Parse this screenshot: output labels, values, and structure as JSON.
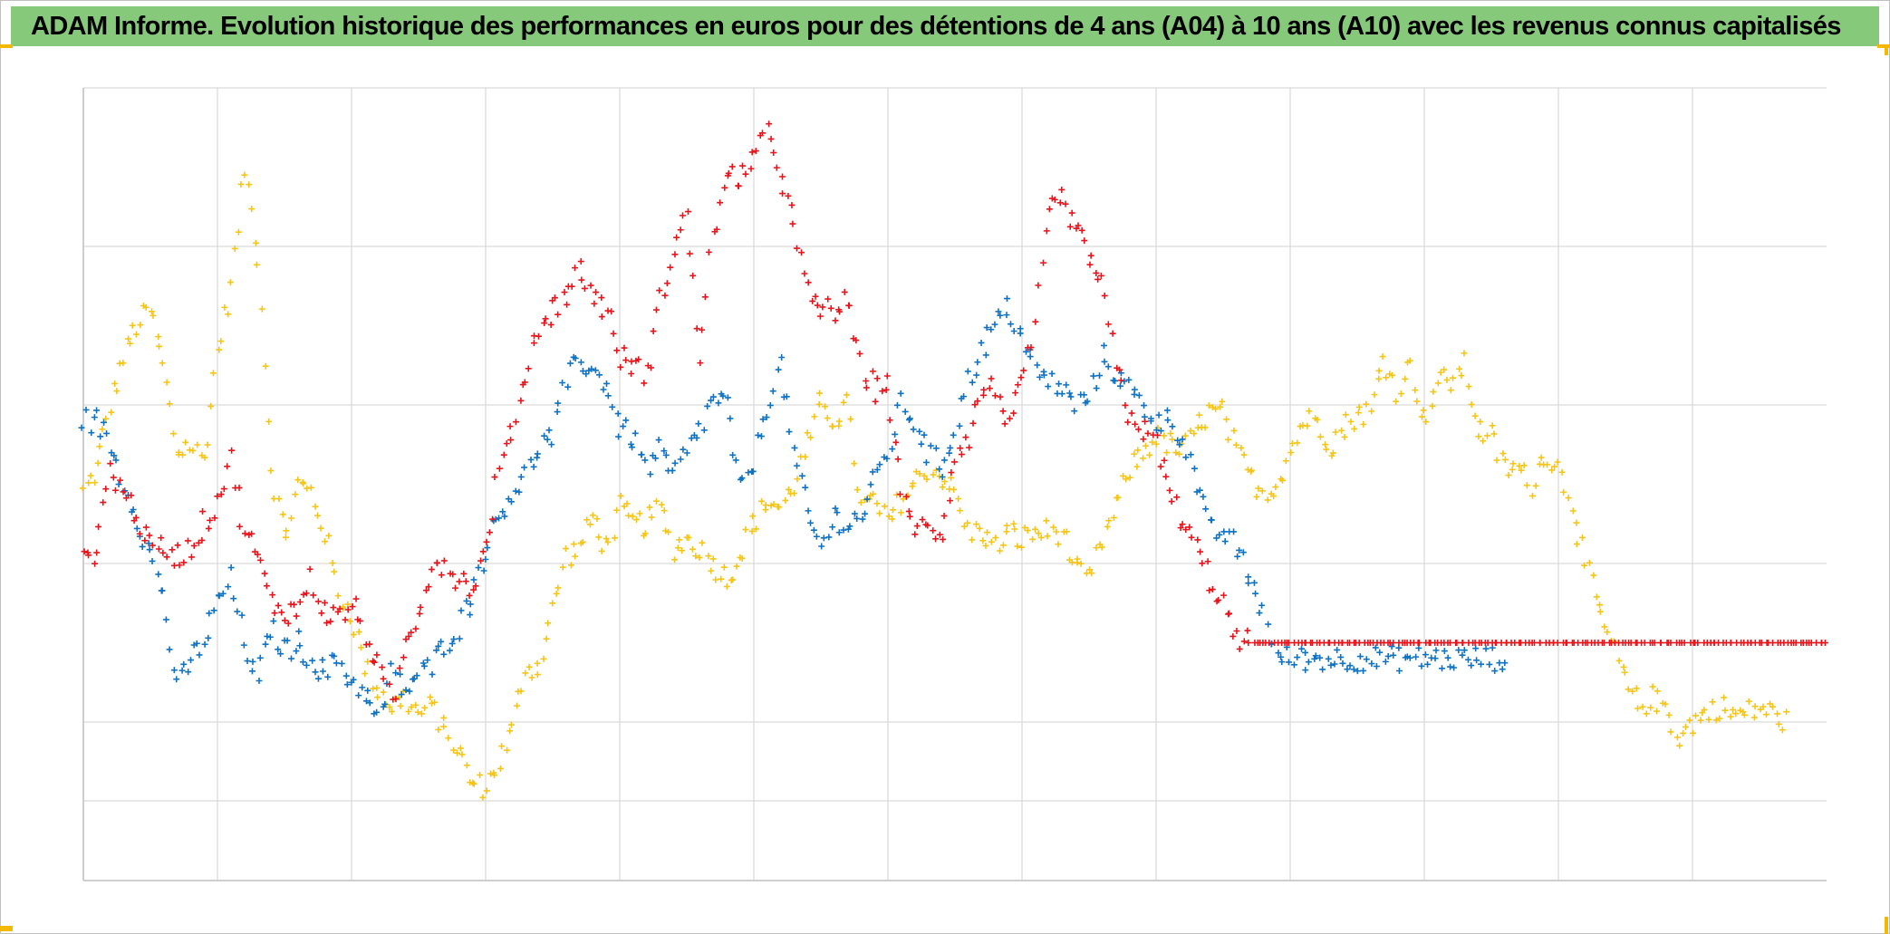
{
  "title": "ADAM Informe. Evolution historique des performances en euros pour des détentions de 4 ans (A04) à 10 ans (A10) avec les revenus connus capitalisés",
  "colors": {
    "title_bg": "#86c97a",
    "corner_accent": "#f5b800",
    "grid": "#d9d9d9"
  },
  "chart_data": {
    "type": "scatter",
    "marker": "plus",
    "x_ticks": 13,
    "y_ticks": 6,
    "xlim": [
      0,
      1300
    ],
    "ylim": [
      -150,
      350
    ],
    "grid": true,
    "legend": "none",
    "series": [
      {
        "color": "#f5c518",
        "x": [
          0,
          10,
          20,
          30,
          40,
          50,
          60,
          70,
          80,
          90,
          100,
          110,
          120,
          130,
          140,
          150,
          160,
          170,
          180,
          190,
          200,
          210,
          220,
          230,
          240,
          250,
          260,
          270,
          280,
          290,
          300,
          310,
          320,
          330,
          340,
          350,
          360,
          370,
          380,
          390,
          400,
          410,
          420,
          430,
          440,
          450,
          460,
          470,
          480,
          490,
          500,
          510,
          520,
          530,
          540,
          550,
          560,
          570,
          580,
          590,
          600,
          610,
          620,
          630,
          640,
          650,
          660,
          670,
          680,
          690,
          700,
          710,
          720,
          730,
          740,
          750,
          760,
          770,
          780,
          790,
          800,
          810,
          820,
          830,
          840,
          850,
          860,
          870,
          880,
          890,
          900,
          910,
          920,
          930,
          940,
          950,
          960,
          970,
          980,
          990,
          1000,
          1010,
          1020,
          1030,
          1040,
          1050,
          1060,
          1070,
          1080,
          1090,
          1100,
          1110,
          1120,
          1130,
          1140,
          1150,
          1160,
          1170,
          1180,
          1190,
          1200,
          1210,
          1220,
          1230,
          1240,
          1250,
          1260,
          1270
        ],
        "y": [
          95,
          110,
          150,
          180,
          200,
          210,
          175,
          120,
          125,
          115,
          185,
          225,
          300,
          245,
          110,
          65,
          100,
          95,
          70,
          30,
          20,
          -15,
          -30,
          -40,
          -35,
          -45,
          -40,
          -55,
          -70,
          -90,
          -90,
          -75,
          -55,
          -15,
          -15,
          20,
          55,
          60,
          80,
          60,
          85,
          75,
          75,
          85,
          60,
          65,
          60,
          50,
          40,
          55,
          75,
          90,
          85,
          100,
          125,
          150,
          140,
          150,
          85,
          90,
          75,
          90,
          100,
          110,
          105,
          95,
          70,
          70,
          60,
          70,
          65,
          70,
          70,
          70,
          45,
          40,
          65,
          85,
          110,
          120,
          130,
          125,
          120,
          135,
          145,
          145,
          120,
          105,
          95,
          100,
          120,
          140,
          140,
          125,
          135,
          145,
          145,
          180,
          160,
          175,
          140,
          165,
          165,
          175,
          135,
          130,
          110,
          110,
          100,
          120,
          110,
          90,
          50,
          20,
          0,
          -25,
          -40,
          -35,
          -40,
          -60,
          -50,
          -45,
          -40,
          -45,
          -45,
          -40,
          -45,
          -50
        ]
      },
      {
        "color": "#0f72c2",
        "x": [
          0,
          10,
          20,
          30,
          40,
          50,
          60,
          70,
          80,
          90,
          100,
          110,
          120,
          130,
          140,
          150,
          160,
          170,
          180,
          190,
          200,
          210,
          220,
          230,
          240,
          250,
          260,
          270,
          280,
          290,
          300,
          310,
          320,
          330,
          340,
          350,
          360,
          370,
          380,
          390,
          400,
          410,
          420,
          430,
          440,
          450,
          460,
          470,
          480,
          490,
          500,
          510,
          520,
          530,
          540,
          550,
          560,
          570,
          580,
          590,
          600,
          610,
          620,
          630,
          640,
          650,
          660,
          670,
          680,
          690,
          700,
          710,
          720,
          730,
          740,
          750,
          760,
          770,
          780,
          790,
          800,
          810,
          820,
          830,
          840,
          850,
          860,
          870,
          880,
          890,
          900,
          910,
          920,
          930,
          940,
          950,
          960,
          970,
          980,
          990,
          1000,
          1010,
          1020,
          1030,
          1040,
          1050,
          1060
        ],
        "y": [
          140,
          140,
          125,
          100,
          80,
          55,
          30,
          -30,
          -10,
          0,
          25,
          40,
          0,
          -25,
          10,
          -5,
          0,
          -10,
          -20,
          -10,
          -25,
          -30,
          -50,
          -20,
          -30,
          -20,
          -15,
          0,
          10,
          30,
          60,
          80,
          95,
          105,
          125,
          130,
          165,
          180,
          170,
          165,
          135,
          130,
          110,
          120,
          105,
          120,
          135,
          155,
          150,
          95,
          115,
          150,
          175,
          120,
          80,
          60,
          80,
          75,
          80,
          100,
          120,
          150,
          140,
          120,
          110,
          135,
          165,
          185,
          200,
          210,
          195,
          170,
          165,
          160,
          150,
          155,
          180,
          170,
          160,
          150,
          140,
          140,
          130,
          100,
          70,
          70,
          60,
          40,
          20,
          -10,
          -10,
          -10,
          -10,
          -10,
          -10,
          -10,
          -10,
          -10,
          -10,
          -10,
          -10,
          -10,
          -10,
          -10,
          -10,
          -10,
          -10
        ]
      },
      {
        "color": "#e8141b",
        "x": [
          0,
          10,
          20,
          30,
          40,
          50,
          60,
          70,
          80,
          90,
          100,
          110,
          120,
          130,
          140,
          150,
          160,
          170,
          180,
          190,
          200,
          210,
          220,
          230,
          240,
          250,
          260,
          270,
          280,
          290,
          300,
          310,
          320,
          330,
          340,
          350,
          360,
          370,
          380,
          390,
          400,
          410,
          420,
          430,
          440,
          450,
          460,
          470,
          480,
          490,
          500,
          510,
          520,
          530,
          540,
          550,
          560,
          570,
          580,
          590,
          600,
          610,
          620,
          630,
          640,
          650,
          660,
          670,
          680,
          690,
          700,
          710,
          720,
          730,
          740,
          750,
          760,
          770,
          780,
          790,
          800,
          810,
          820,
          830,
          840,
          850,
          860,
          870,
          880,
          890,
          900,
          910,
          920,
          930,
          940,
          950,
          960,
          970,
          980,
          990,
          1000,
          1010,
          1020,
          1030,
          1040,
          1050,
          1060,
          1070,
          1080,
          1090,
          1100,
          1110,
          1120,
          1130,
          1140,
          1150,
          1160,
          1170,
          1180,
          1190,
          1200,
          1210,
          1220,
          1230,
          1240,
          1250,
          1260,
          1270,
          1280,
          1290,
          1300
        ],
        "y": [
          50,
          60,
          110,
          95,
          80,
          60,
          60,
          55,
          60,
          75,
          90,
          115,
          70,
          55,
          25,
          20,
          20,
          40,
          20,
          15,
          25,
          5,
          -15,
          -40,
          0,
          20,
          50,
          50,
          40,
          35,
          60,
          110,
          135,
          170,
          200,
          210,
          220,
          235,
          220,
          210,
          180,
          175,
          170,
          215,
          250,
          270,
          180,
          260,
          290,
          295,
          305,
          320,
          300,
          260,
          220,
          210,
          210,
          215,
          175,
          160,
          165,
          90,
          75,
          70,
          70,
          120,
          130,
          160,
          160,
          140,
          160,
          200,
          270,
          280,
          260,
          245,
          225,
          175,
          145,
          135,
          125,
          95,
          75,
          60,
          40,
          25,
          0,
          0,
          0,
          0,
          0,
          0,
          0,
          0,
          0,
          0,
          0,
          0,
          0,
          0,
          0,
          0,
          0,
          0,
          0,
          0,
          0,
          0,
          0,
          0,
          0,
          0,
          0,
          0,
          0,
          0,
          0,
          0,
          0,
          0,
          0,
          0,
          0,
          0,
          0,
          0,
          0,
          0,
          0,
          0,
          0
        ]
      }
    ]
  }
}
